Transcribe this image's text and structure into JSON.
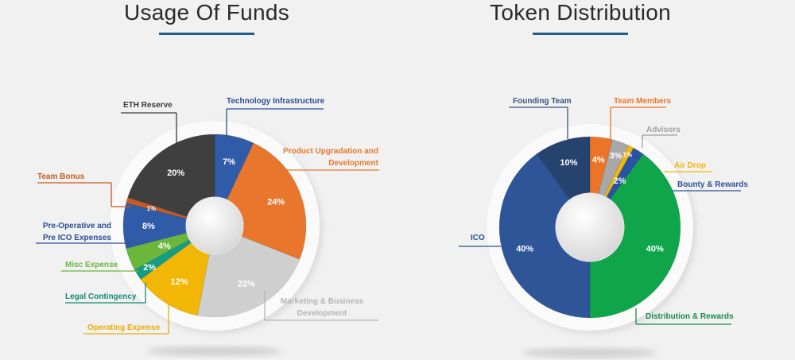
{
  "chart_data": [
    {
      "type": "pie",
      "title": "Usage Of Funds",
      "categories": [
        "Technology Infrastructure",
        "Product Upgradation and Development",
        "Marketing & Business Development",
        "Operating Expense",
        "Legal Contingency",
        "Misc  Expense",
        "Pre-Operative and Pre ICO Expenses",
        "Team Bonus",
        "ETH Reserve"
      ],
      "values": [
        7,
        24,
        22,
        12,
        2,
        4,
        8,
        1,
        20
      ],
      "unit": "%",
      "colors": [
        "#2f5ba8",
        "#e8772d",
        "#cfcfcf",
        "#f2b705",
        "#159c83",
        "#6ab73c",
        "#2f5ba8",
        "#c65a20",
        "#3f3f3f"
      ],
      "label_colors": [
        "#2c4f95",
        "#e8772d",
        "#b5b5b5",
        "#e9ad08",
        "#148a73",
        "#6ab73c",
        "#2c4f95",
        "#c65a20",
        "#3a3a3a"
      ],
      "legend": "callouts"
    },
    {
      "type": "pie",
      "title": "Token Distribution",
      "categories": [
        "Team Members",
        "Advisors",
        "Air Drop",
        "Bounty & Rewards",
        "Distribution & Rewards",
        "ICO",
        "Founding Team"
      ],
      "values": [
        4,
        3,
        1,
        2,
        40,
        40,
        10
      ],
      "unit": "%",
      "colors": [
        "#ec7428",
        "#a8a8a8",
        "#f2b705",
        "#2852a3",
        "#0fa64b",
        "#2e5597",
        "#26426f"
      ],
      "label_colors": [
        "#ec7428",
        "#a0a0a0",
        "#f2b705",
        "#2c4f95",
        "#178a4a",
        "#2c4f95",
        "#3a5478"
      ],
      "legend": "callouts"
    }
  ]
}
